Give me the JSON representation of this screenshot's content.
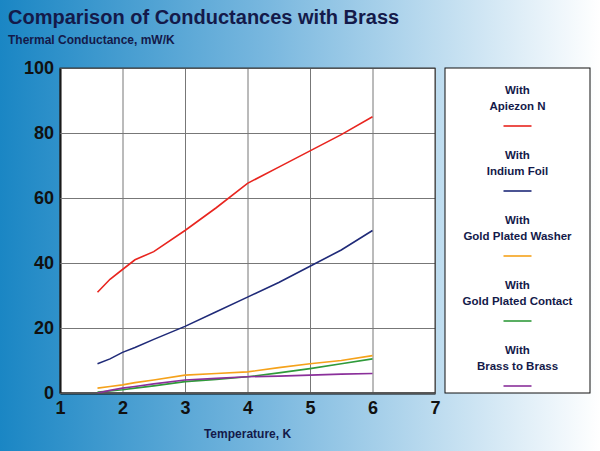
{
  "chart_data": {
    "type": "line",
    "title": "Comparison of Conductances with Brass",
    "y_label": "Thermal Conductance, mW/K",
    "x_label": "Temperature, K",
    "x": [
      1.6,
      1.8,
      2,
      2.2,
      2.5,
      3,
      3.5,
      4,
      4.5,
      5,
      5.5,
      6
    ],
    "series": [
      {
        "name": "With Apiezon N",
        "color": "#e8251f",
        "values": [
          31,
          35,
          38,
          41,
          43.5,
          50,
          57,
          64.5,
          69.5,
          74.5,
          79.5,
          85
        ]
      },
      {
        "name": "With Indium Foil",
        "color": "#1f2a78",
        "values": [
          9,
          10.5,
          12.5,
          14,
          16.5,
          20.5,
          25,
          29.5,
          34,
          39,
          44,
          50
        ]
      },
      {
        "name": "With Gold Plated Washer",
        "color": "#f5a21b",
        "values": [
          1.5,
          2,
          2.5,
          3.2,
          4,
          5.5,
          6,
          6.5,
          7.8,
          9,
          10,
          11.5
        ]
      },
      {
        "name": "With Gold Plated Contact",
        "color": "#2f9a3a",
        "values": [
          0.3,
          0.6,
          1,
          1.5,
          2.2,
          3.5,
          4.2,
          5,
          6.2,
          7.5,
          9,
          10.5
        ]
      },
      {
        "name": "With Brass to Brass",
        "color": "#8a2f9a",
        "values": [
          0,
          0.8,
          1.5,
          2,
          2.8,
          4,
          4.5,
          5,
          5.2,
          5.5,
          5.8,
          6
        ]
      }
    ],
    "xlim": [
      1,
      7
    ],
    "xticks": [
      1,
      2,
      3,
      4,
      5,
      6,
      7
    ],
    "ylim": [
      0,
      100
    ],
    "yticks": [
      0,
      20,
      40,
      60,
      80,
      100
    ],
    "grid": true,
    "legend": "right"
  }
}
